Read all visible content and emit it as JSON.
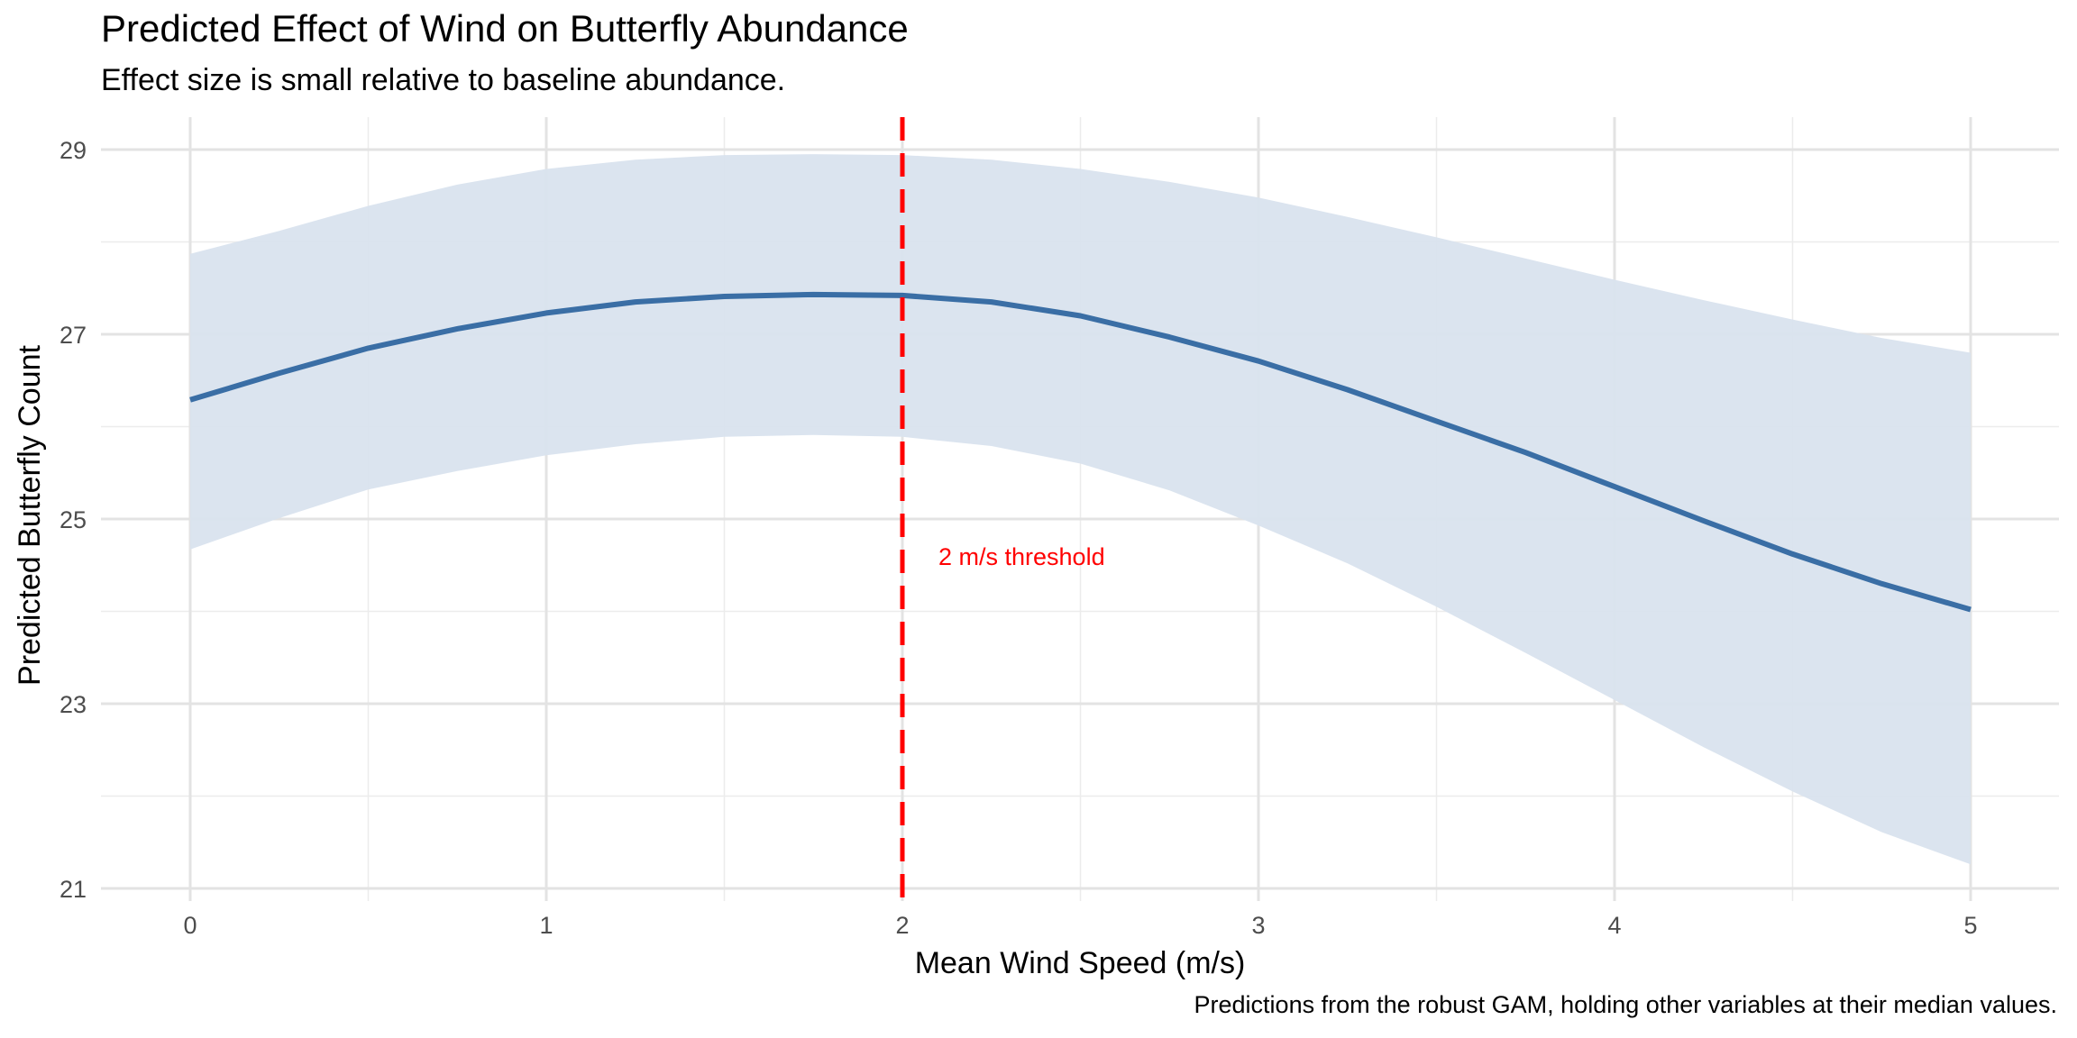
{
  "chart_data": {
    "type": "line",
    "title": "Predicted Effect of Wind on Butterfly Abundance",
    "subtitle": "Effect size is small relative to baseline abundance.",
    "caption": "Predictions from the robust GAM, holding other variables at their median values.",
    "xlabel": "Mean Wind Speed (m/s)",
    "ylabel": "Predicted Butterfly Count",
    "xlim": [
      -0.25,
      5.25
    ],
    "ylim": [
      21,
      29.3
    ],
    "x_ticks": [
      0,
      1,
      2,
      3,
      4,
      5
    ],
    "y_ticks": [
      21,
      23,
      25,
      27,
      29
    ],
    "grid": true,
    "series": [
      {
        "color": "#3a6ea5",
        "x": [
          0,
          0.25,
          0.5,
          0.75,
          1,
          1.25,
          1.5,
          1.75,
          2,
          2.25,
          2.5,
          2.75,
          3,
          3.25,
          3.5,
          3.75,
          4,
          4.25,
          4.5,
          4.75,
          5
        ],
        "y": [
          26.29,
          26.58,
          26.85,
          27.06,
          27.23,
          27.35,
          27.41,
          27.43,
          27.42,
          27.35,
          27.2,
          26.97,
          26.71,
          26.4,
          26.06,
          25.72,
          25.35,
          24.98,
          24.62,
          24.3,
          24.02
        ],
        "lower": [
          24.67,
          25.01,
          25.32,
          25.52,
          25.69,
          25.81,
          25.89,
          25.91,
          25.89,
          25.79,
          25.6,
          25.31,
          24.93,
          24.52,
          24.05,
          23.55,
          23.04,
          22.53,
          22.05,
          21.61,
          21.26
        ],
        "upper": [
          27.87,
          28.12,
          28.39,
          28.62,
          28.79,
          28.89,
          28.94,
          28.95,
          28.94,
          28.89,
          28.79,
          28.65,
          28.48,
          28.27,
          28.05,
          27.82,
          27.59,
          27.37,
          27.16,
          26.96,
          26.8
        ],
        "band_color": "#d9e3ee"
      }
    ],
    "reference_line": {
      "x": 2,
      "color": "#ff0000",
      "label": "2 m/s threshold"
    }
  }
}
